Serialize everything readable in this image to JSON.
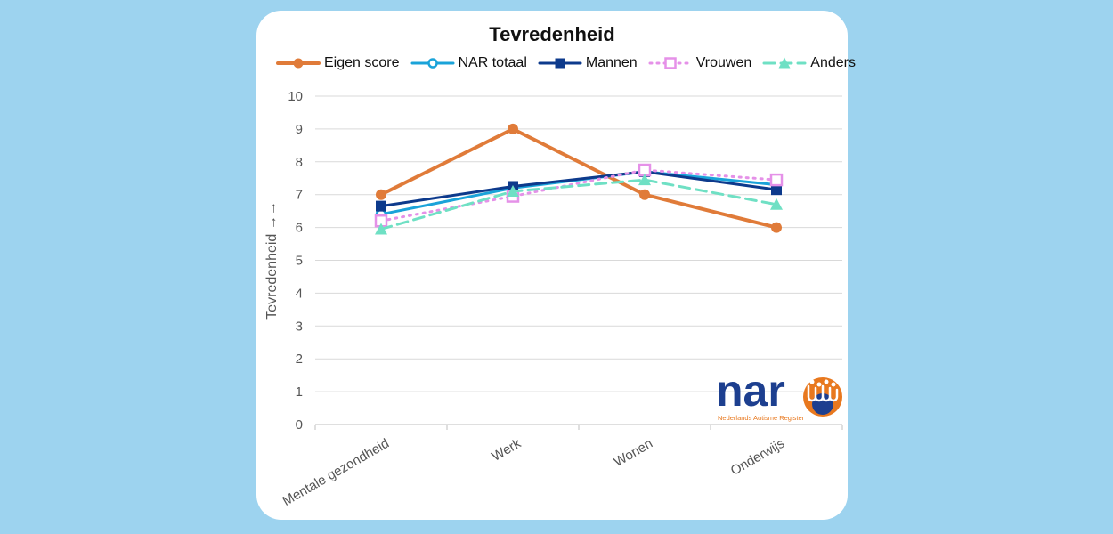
{
  "chart_data": {
    "type": "line",
    "title": "Tevredenheid",
    "ylabel": "Tevredenheid →→",
    "xlabel": "",
    "categories": [
      "Mentale gezondheid",
      "Werk",
      "Wonen",
      "Onderwijs"
    ],
    "ylim": [
      0,
      10
    ],
    "yticks": [
      0,
      1,
      2,
      3,
      4,
      5,
      6,
      7,
      8,
      9,
      10
    ],
    "grid": true,
    "legend_position": "top",
    "series": [
      {
        "name": "Eigen score",
        "values": [
          7.0,
          9.0,
          7.0,
          6.0
        ],
        "color": "#e07b39",
        "marker": "circle",
        "dash": "solid",
        "width": 4
      },
      {
        "name": "NAR totaal",
        "values": [
          6.4,
          7.2,
          7.7,
          7.3
        ],
        "color": "#1aa3d9",
        "marker": "circle-open",
        "dash": "solid",
        "width": 3
      },
      {
        "name": "Mannen",
        "values": [
          6.65,
          7.25,
          7.7,
          7.15
        ],
        "color": "#0d3a8c",
        "marker": "square",
        "dash": "solid",
        "width": 3
      },
      {
        "name": "Vrouwen",
        "values": [
          6.2,
          6.95,
          7.75,
          7.45
        ],
        "color": "#e591e8",
        "marker": "square-open",
        "dash": "dotted",
        "width": 3
      },
      {
        "name": "Anders",
        "values": [
          5.95,
          7.1,
          7.45,
          6.7
        ],
        "color": "#6fe0c4",
        "marker": "triangle",
        "dash": "dashed",
        "width": 3
      }
    ]
  },
  "logo": {
    "text": "nar",
    "subtitle": "Nederlands Autisme Register",
    "colors": {
      "primary": "#1d3f8f",
      "accent": "#e8781e"
    }
  }
}
